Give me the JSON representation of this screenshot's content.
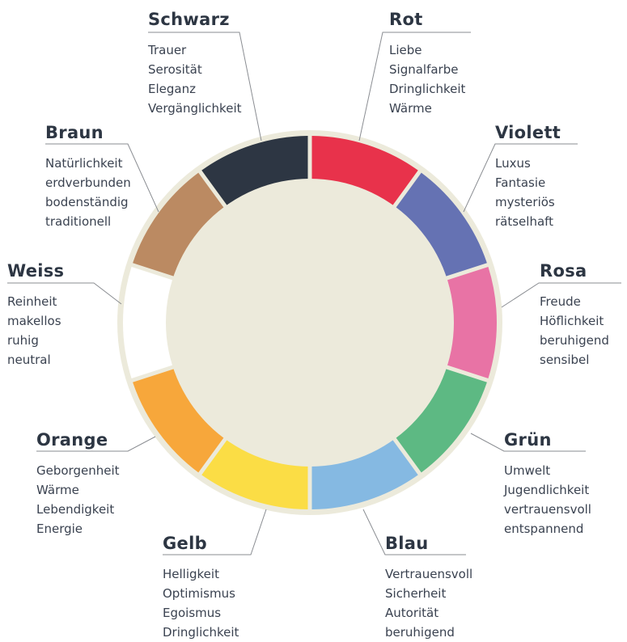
{
  "colors": [
    {
      "key": "rot",
      "name": "Rot",
      "color": "#e8324b",
      "attributes": [
        "Liebe",
        "Signalfarbe",
        "Dringlichkeit",
        "Wärme"
      ]
    },
    {
      "key": "violett",
      "name": "Violett",
      "color": "#6572b3",
      "attributes": [
        "Luxus",
        "Fantasie",
        "mysteriös",
        "rätselhaft"
      ]
    },
    {
      "key": "rosa",
      "name": "Rosa",
      "color": "#e873a5",
      "attributes": [
        "Freude",
        "Höflichkeit",
        "beruhigend",
        "sensibel"
      ]
    },
    {
      "key": "gruen",
      "name": "Grün",
      "color": "#5db983",
      "attributes": [
        "Umwelt",
        "Jugendlichkeit",
        "vertrauensvoll",
        "entspannend"
      ]
    },
    {
      "key": "blau",
      "name": "Blau",
      "color": "#85b9e2",
      "attributes": [
        "Vertrauensvoll",
        "Sicherheit",
        "Autorität",
        "beruhigend"
      ]
    },
    {
      "key": "gelb",
      "name": "Gelb",
      "color": "#fbdd45",
      "attributes": [
        "Helligkeit",
        "Optimismus",
        "Egoismus",
        "Dringlichkeit"
      ]
    },
    {
      "key": "orange",
      "name": "Orange",
      "color": "#f7a73b",
      "attributes": [
        "Geborgenheit",
        "Wärme",
        "Lebendigkeit",
        "Energie"
      ]
    },
    {
      "key": "weiss",
      "name": "Weiss",
      "color": "#ffffff",
      "attributes": [
        "Reinheit",
        "makellos",
        "ruhig",
        "neutral"
      ]
    },
    {
      "key": "braun",
      "name": "Braun",
      "color": "#bb8a62",
      "attributes": [
        "Natürlichkeit",
        "erdverbunden",
        "bodenständig",
        "traditionell"
      ]
    },
    {
      "key": "schwarz",
      "name": "Schwarz",
      "color": "#2d3643",
      "attributes": [
        "Trauer",
        "Serosität",
        "Eleganz",
        "Vergänglichkeit"
      ]
    }
  ],
  "ring_color": "#eceadb",
  "leader_color": "#8a8d92"
}
